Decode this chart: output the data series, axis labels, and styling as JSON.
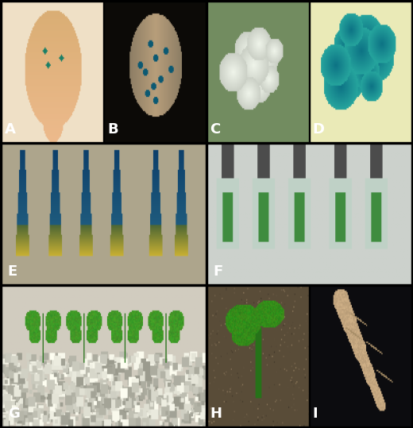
{
  "figure_width": 5.2,
  "figure_height": 5.39,
  "dpi": 100,
  "border_color": "#000000",
  "border_width": 1.0,
  "label_color": "#ffffff",
  "label_fontsize": 13,
  "label_fontweight": "bold",
  "background_color": "#000000",
  "panels": [
    {
      "label": "A",
      "row": 0,
      "col": 0,
      "colspan": 1
    },
    {
      "label": "B",
      "row": 0,
      "col": 1,
      "colspan": 1
    },
    {
      "label": "C",
      "row": 0,
      "col": 2,
      "colspan": 1
    },
    {
      "label": "D",
      "row": 0,
      "col": 3,
      "colspan": 1
    },
    {
      "label": "E",
      "row": 1,
      "col": 0,
      "colspan": 2
    },
    {
      "label": "F",
      "row": 1,
      "col": 2,
      "colspan": 2
    },
    {
      "label": "G",
      "row": 2,
      "col": 0,
      "colspan": 2
    },
    {
      "label": "H",
      "row": 2,
      "col": 2,
      "colspan": 1
    },
    {
      "label": "I",
      "row": 2,
      "col": 3,
      "colspan": 1
    }
  ]
}
